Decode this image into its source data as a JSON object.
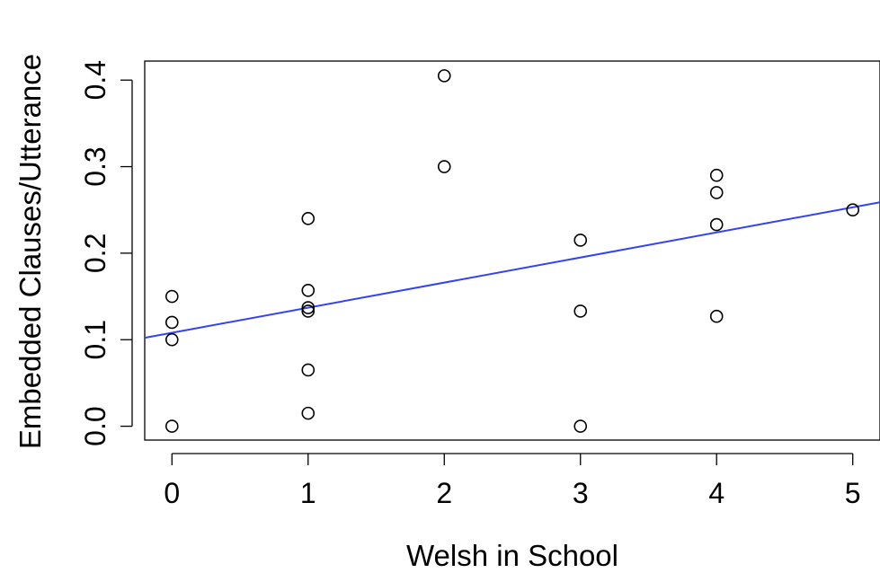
{
  "chart_data": {
    "type": "scatter",
    "title": "",
    "xlabel": "Welsh in School",
    "ylabel": "Embedded Clauses/Utterance",
    "xlim": [
      -0.2,
      5.2
    ],
    "ylim": [
      -0.016,
      0.422
    ],
    "x_ticks": [
      0,
      1,
      2,
      3,
      4,
      5
    ],
    "x_tick_labels": [
      "0",
      "1",
      "2",
      "3",
      "4",
      "5"
    ],
    "y_ticks": [
      0.0,
      0.1,
      0.2,
      0.3,
      0.4
    ],
    "y_tick_labels": [
      "0.0",
      "0.1",
      "0.2",
      "0.3",
      "0.4"
    ],
    "grid": false,
    "legend": "none",
    "series": [
      {
        "x": [
          0,
          0,
          0,
          0,
          1,
          1,
          1,
          1,
          1,
          1,
          2,
          2,
          3,
          3,
          3,
          4,
          4,
          4,
          4,
          5
        ],
        "y": [
          0.15,
          0.12,
          0.1,
          0.0,
          0.24,
          0.157,
          0.137,
          0.133,
          0.065,
          0.015,
          0.405,
          0.3,
          0.215,
          0.133,
          0.0,
          0.29,
          0.27,
          0.233,
          0.127,
          0.25
        ],
        "marker": "open-circle",
        "color": "#000000"
      }
    ],
    "fit_line": {
      "intercept": 0.108,
      "slope": 0.029,
      "color": "#3344ee"
    }
  }
}
